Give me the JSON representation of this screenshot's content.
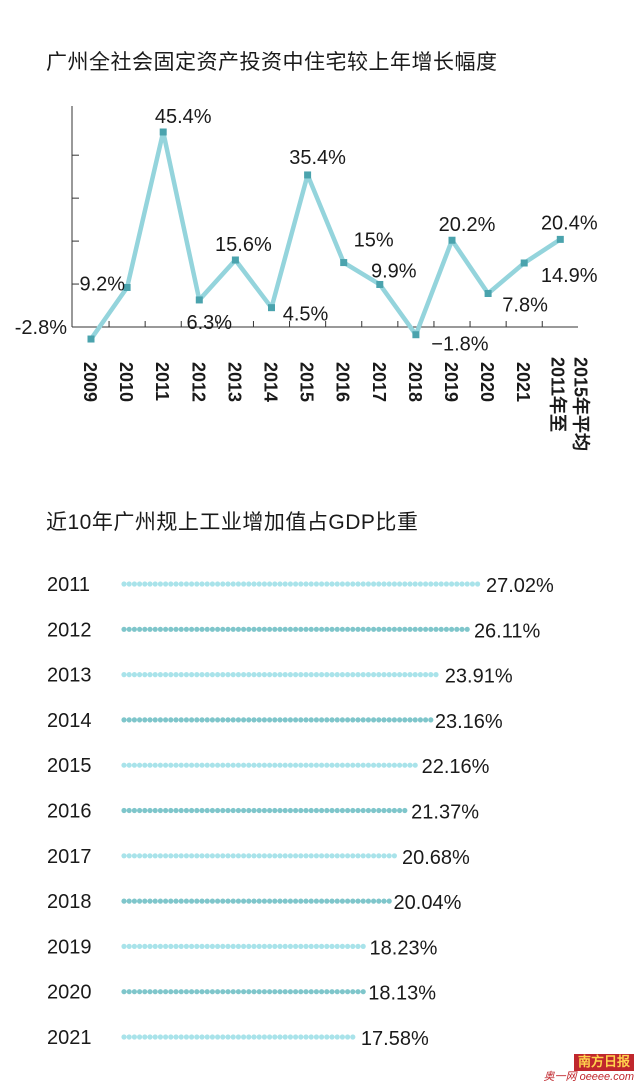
{
  "charts": [
    {
      "title": "广州全社会固定资产投资中住宅较上年增长幅度"
    },
    {
      "title": "近10年广州规上工业增加值占GDP比重"
    }
  ],
  "chart_data": [
    {
      "type": "line",
      "title": "广州全社会固定资产投资中住宅较上年增长幅度",
      "categories": [
        "2009",
        "2010",
        "2011",
        "2012",
        "2013",
        "2014",
        "2015",
        "2016",
        "2017",
        "2018",
        "2019",
        "2020",
        "2021",
        "2011年至2015年平均"
      ],
      "series": [
        {
          "values": [
            -2.8,
            9.2,
            45.4,
            6.3,
            15.6,
            4.5,
            35.4,
            15,
            9.9,
            -1.8,
            20.2,
            7.8,
            14.9,
            20.4
          ]
        }
      ],
      "value_labels": [
        "-2.8%",
        "9.2%",
        "45.4%",
        "6.3%",
        "15.6%",
        "4.5%",
        "35.4%",
        "15%",
        "9.9%",
        "−1.8%",
        "20.2%",
        "7.8%",
        "14.9%",
        "20.4%"
      ],
      "ylim": [
        -5,
        50
      ],
      "line_color": "#94d4dc",
      "marker_color": "#4aa3ad"
    },
    {
      "type": "bar",
      "title": "近10年广州规上工业增加值占GDP比重",
      "categories": [
        "2011",
        "2012",
        "2013",
        "2014",
        "2015",
        "2016",
        "2017",
        "2018",
        "2019",
        "2020",
        "2021"
      ],
      "values": [
        27.02,
        26.11,
        23.91,
        23.16,
        22.16,
        21.37,
        20.68,
        20.04,
        18.23,
        18.13,
        17.58
      ],
      "value_labels": [
        "27.02%",
        "26.11%",
        "23.91%",
        "23.16%",
        "22.16%",
        "21.37%",
        "20.68%",
        "20.04%",
        "18.23%",
        "18.13%",
        "17.58%"
      ],
      "dot_colors": [
        "#a9e3ea",
        "#7fc6cb"
      ]
    }
  ],
  "watermark": {
    "brand": "南方日报",
    "site": "奥一网 oeeee.com"
  }
}
